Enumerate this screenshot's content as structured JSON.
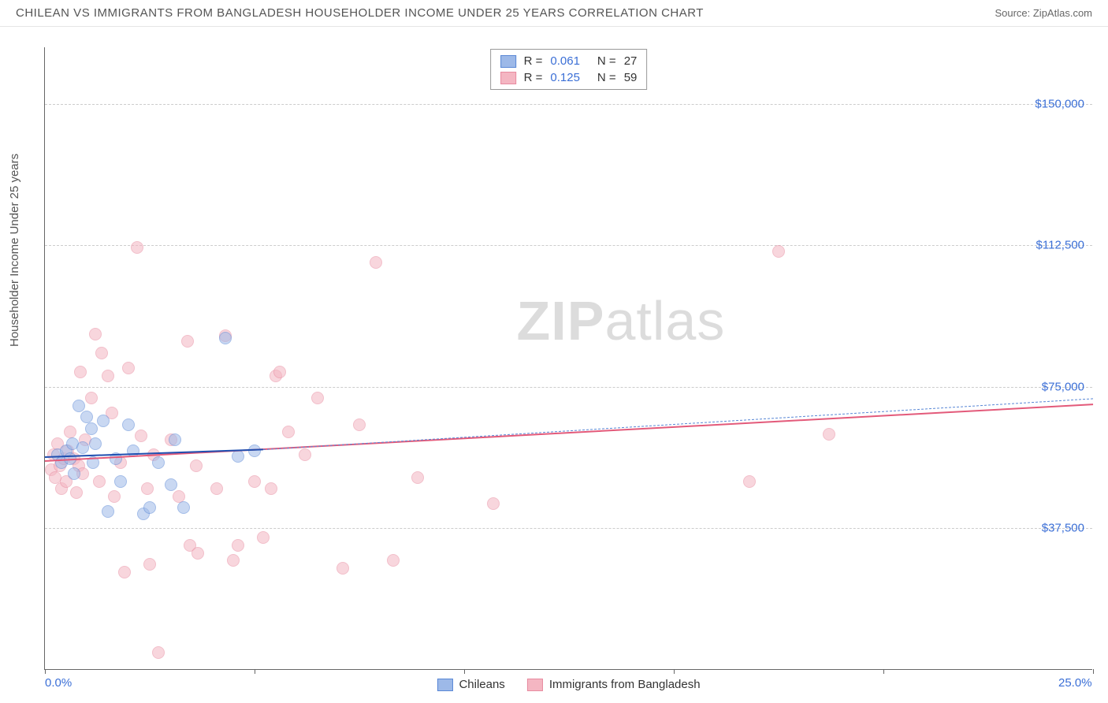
{
  "title": "CHILEAN VS IMMIGRANTS FROM BANGLADESH HOUSEHOLDER INCOME UNDER 25 YEARS CORRELATION CHART",
  "source": "Source: ZipAtlas.com",
  "y_axis_label": "Householder Income Under 25 years",
  "watermark_bold": "ZIP",
  "watermark_light": "atlas",
  "chart": {
    "type": "scatter",
    "xlim": [
      0,
      25
    ],
    "ylim": [
      0,
      165000
    ],
    "x_ticks": [
      0,
      5,
      10,
      15,
      20,
      25
    ],
    "x_tick_labels_shown": {
      "0": "0.0%",
      "25": "25.0%"
    },
    "y_ticks": [
      37500,
      75000,
      112500,
      150000
    ],
    "y_tick_labels": [
      "$37,500",
      "$75,000",
      "$112,500",
      "$150,000"
    ],
    "background_color": "#ffffff",
    "grid_color": "#cccccc",
    "point_radius": 8,
    "point_opacity": 0.55,
    "series": {
      "chileans": {
        "label": "Chileans",
        "fill": "#9db9e8",
        "stroke": "#5a88d6",
        "R": "0.061",
        "N": "27",
        "trend_color": "#1f4fb0",
        "trend_width": 2.5,
        "trend_dash_extension_color": "#5a88d6",
        "trend": {
          "x1": 0,
          "y1": 56500,
          "x2": 5.2,
          "y2": 58500,
          "ext_x2": 25,
          "ext_y2": 72000
        },
        "points": [
          [
            0.3,
            57000
          ],
          [
            0.4,
            55000
          ],
          [
            0.5,
            58000
          ],
          [
            0.6,
            56000
          ],
          [
            0.65,
            60000
          ],
          [
            0.7,
            52000
          ],
          [
            0.8,
            70000
          ],
          [
            0.9,
            59000
          ],
          [
            1.0,
            67000
          ],
          [
            1.1,
            64000
          ],
          [
            1.15,
            55000
          ],
          [
            1.2,
            60000
          ],
          [
            1.4,
            66000
          ],
          [
            1.5,
            42000
          ],
          [
            1.7,
            56000
          ],
          [
            1.8,
            50000
          ],
          [
            2.0,
            65000
          ],
          [
            2.1,
            58000
          ],
          [
            2.35,
            41400
          ],
          [
            2.5,
            43000
          ],
          [
            2.7,
            55000
          ],
          [
            3.0,
            49000
          ],
          [
            3.1,
            61000
          ],
          [
            3.3,
            43000
          ],
          [
            4.3,
            88000
          ],
          [
            4.6,
            56500
          ],
          [
            5.0,
            58000
          ]
        ]
      },
      "bangladesh": {
        "label": "Immigrants from Bangladesh",
        "fill": "#f4b6c2",
        "stroke": "#e88ba0",
        "R": "0.125",
        "N": "59",
        "trend_color": "#e35a7a",
        "trend_width": 2,
        "trend": {
          "x1": 0,
          "y1": 55500,
          "x2": 25,
          "y2": 70500
        },
        "points": [
          [
            0.15,
            53000
          ],
          [
            0.2,
            57000
          ],
          [
            0.25,
            51000
          ],
          [
            0.3,
            60000
          ],
          [
            0.35,
            54000
          ],
          [
            0.4,
            48000
          ],
          [
            0.45,
            56000
          ],
          [
            0.5,
            50000
          ],
          [
            0.55,
            58000
          ],
          [
            0.6,
            63000
          ],
          [
            0.7,
            56000
          ],
          [
            0.75,
            47000
          ],
          [
            0.8,
            54000
          ],
          [
            0.85,
            79000
          ],
          [
            0.9,
            52000
          ],
          [
            0.95,
            61000
          ],
          [
            1.1,
            72000
          ],
          [
            1.2,
            89000
          ],
          [
            1.3,
            50000
          ],
          [
            1.35,
            84000
          ],
          [
            1.5,
            78000
          ],
          [
            1.6,
            68000
          ],
          [
            1.65,
            46000
          ],
          [
            1.8,
            55000
          ],
          [
            1.9,
            26000
          ],
          [
            2.0,
            80000
          ],
          [
            2.2,
            112000
          ],
          [
            2.3,
            62000
          ],
          [
            2.45,
            48000
          ],
          [
            2.5,
            28000
          ],
          [
            2.6,
            57000
          ],
          [
            2.7,
            4500
          ],
          [
            3.0,
            61000
          ],
          [
            3.2,
            46000
          ],
          [
            3.4,
            87000
          ],
          [
            3.45,
            33000
          ],
          [
            3.6,
            54000
          ],
          [
            3.65,
            31000
          ],
          [
            4.1,
            48000
          ],
          [
            4.3,
            88500
          ],
          [
            4.5,
            29000
          ],
          [
            4.6,
            33000
          ],
          [
            5.0,
            50000
          ],
          [
            5.2,
            35000
          ],
          [
            5.4,
            48000
          ],
          [
            5.5,
            78000
          ],
          [
            5.6,
            79000
          ],
          [
            5.8,
            63000
          ],
          [
            6.2,
            57000
          ],
          [
            6.5,
            72000
          ],
          [
            7.1,
            27000
          ],
          [
            7.5,
            65000
          ],
          [
            7.9,
            108000
          ],
          [
            8.3,
            29000
          ],
          [
            8.9,
            51000
          ],
          [
            10.7,
            44000
          ],
          [
            16.8,
            50000
          ],
          [
            17.5,
            111000
          ],
          [
            18.7,
            62500
          ]
        ]
      }
    }
  }
}
